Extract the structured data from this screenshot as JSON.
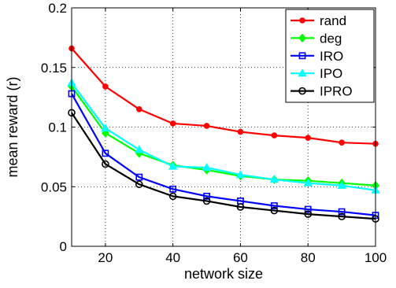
{
  "chart_data": {
    "type": "line",
    "xlabel": "network size",
    "ylabel": "mean reward (r)",
    "xlim": [
      10,
      100
    ],
    "ylim": [
      0,
      0.2
    ],
    "xticks": [
      20,
      40,
      60,
      80,
      100
    ],
    "xtick_labels": [
      "20",
      "40",
      "60",
      "80",
      "100"
    ],
    "yticks": [
      0,
      0.05,
      0.1,
      0.15,
      0.2
    ],
    "ytick_labels": [
      "0",
      "0.05",
      "0.1",
      "0.15",
      "0.2"
    ],
    "grid": true,
    "legend_position": "top-right",
    "x": [
      10,
      20,
      30,
      40,
      50,
      60,
      70,
      80,
      90,
      100
    ],
    "series": [
      {
        "name": "rand",
        "color": "#ff0000",
        "marker": "circle-filled",
        "values": [
          0.166,
          0.134,
          0.115,
          0.103,
          0.101,
          0.096,
          0.093,
          0.091,
          0.087,
          0.086
        ]
      },
      {
        "name": "deg",
        "color": "#00ff00",
        "marker": "diamond-filled",
        "values": [
          0.134,
          0.095,
          0.078,
          0.068,
          0.064,
          0.059,
          0.056,
          0.055,
          0.053,
          0.051
        ]
      },
      {
        "name": "IRO",
        "color": "#0000ff",
        "marker": "square-open",
        "values": [
          0.128,
          0.078,
          0.058,
          0.048,
          0.042,
          0.038,
          0.034,
          0.031,
          0.029,
          0.026
        ]
      },
      {
        "name": "IPO",
        "color": "#00ffff",
        "marker": "triangle-filled",
        "values": [
          0.137,
          0.099,
          0.081,
          0.067,
          0.066,
          0.06,
          0.056,
          0.053,
          0.051,
          0.047
        ]
      },
      {
        "name": "IPRO",
        "color": "#000000",
        "marker": "circle-open",
        "values": [
          0.112,
          0.069,
          0.052,
          0.042,
          0.038,
          0.033,
          0.03,
          0.027,
          0.025,
          0.023
        ]
      }
    ]
  }
}
